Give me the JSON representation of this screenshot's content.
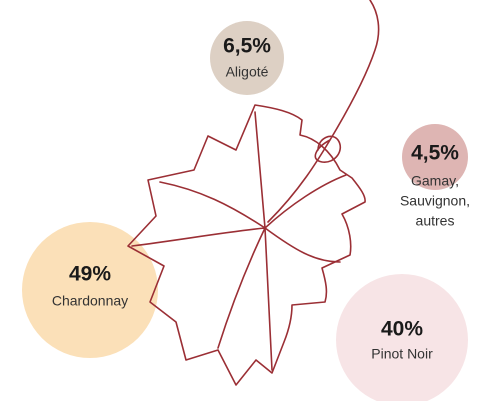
{
  "items": [
    {
      "value_label": "6,5%",
      "label": [
        "Aligoté"
      ],
      "color": "#ddd0c4"
    },
    {
      "value_label": "4,5%",
      "label": [
        "Gamay,",
        "Sauvignon,",
        "autres"
      ],
      "color": "#deb5b3"
    },
    {
      "value_label": "49%",
      "label": [
        "Chardonnay"
      ],
      "color": "#fbe0b8"
    },
    {
      "value_label": "40%",
      "label": [
        "Pinot Noir"
      ],
      "color": "#f7e4e6"
    }
  ]
}
